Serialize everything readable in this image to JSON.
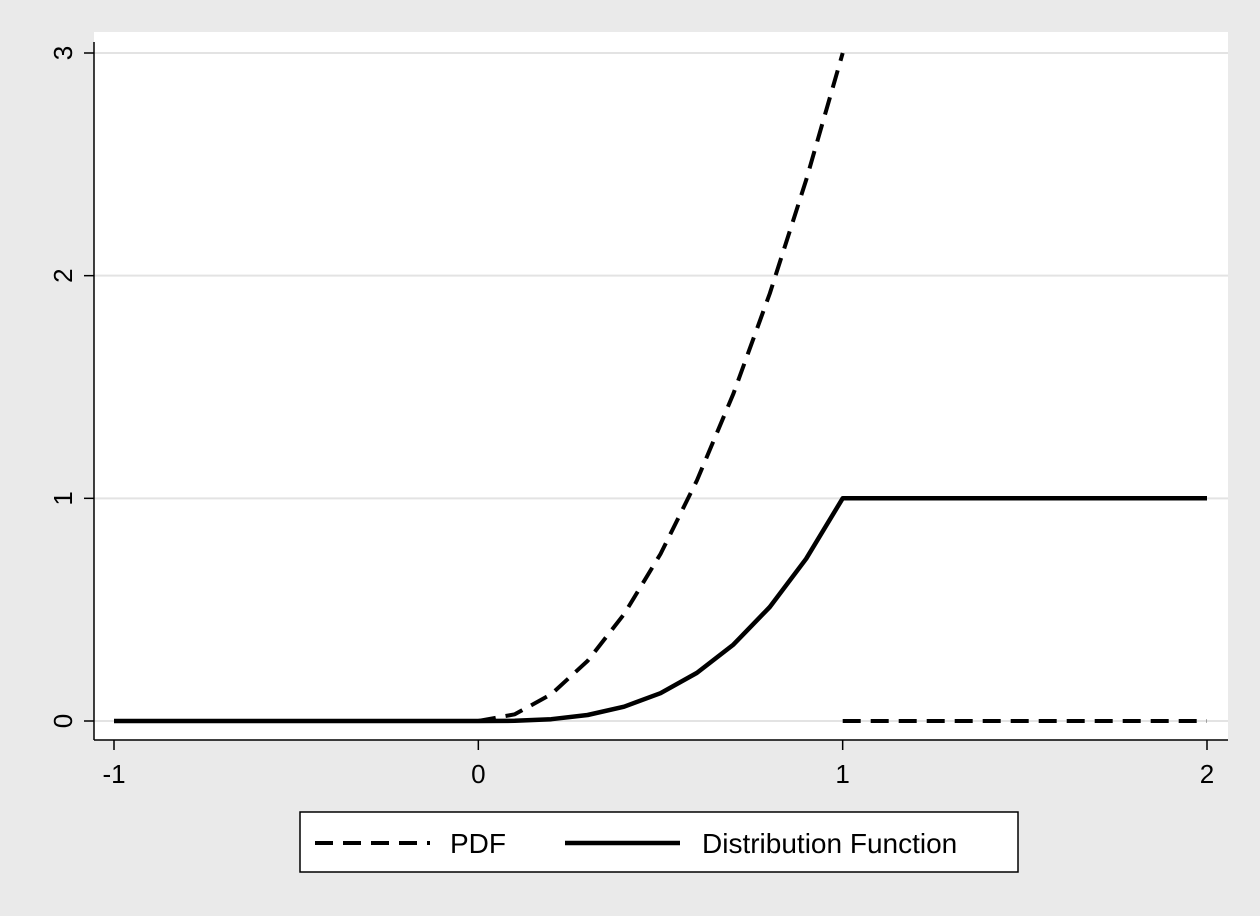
{
  "chart_data": {
    "type": "line",
    "title": "",
    "xlabel": "",
    "ylabel": "",
    "xlim": [
      -1.05,
      2.05
    ],
    "ylim": [
      -0.1,
      3.1
    ],
    "x_ticks": [
      -1,
      0,
      1,
      2
    ],
    "x_tick_labels": [
      "-1",
      "0",
      "1",
      "2"
    ],
    "y_ticks": [
      0,
      1,
      2,
      3
    ],
    "y_tick_labels": [
      "0",
      "1",
      "2",
      "3"
    ],
    "grid": "horizontal",
    "legend_position": "bottom",
    "series": [
      {
        "name": "PDF",
        "style": "dashed",
        "segments": [
          {
            "x": [
              -1,
              -0.5,
              0,
              0.1,
              0.2,
              0.3,
              0.4,
              0.5,
              0.6,
              0.7,
              0.8,
              0.9,
              1.0
            ],
            "y": [
              0,
              0,
              0,
              0.03,
              0.12,
              0.27,
              0.48,
              0.75,
              1.08,
              1.47,
              1.92,
              2.43,
              3.0
            ]
          },
          {
            "x": [
              1,
              2
            ],
            "y": [
              0,
              0
            ]
          }
        ]
      },
      {
        "name": "Distribution Function",
        "style": "solid",
        "segments": [
          {
            "x": [
              -1,
              -0.5,
              0,
              0.1,
              0.2,
              0.3,
              0.4,
              0.5,
              0.6,
              0.7,
              0.8,
              0.9,
              1.0,
              1.5,
              2.0
            ],
            "y": [
              0,
              0,
              0,
              0.001,
              0.008,
              0.027,
              0.064,
              0.125,
              0.216,
              0.343,
              0.512,
              0.729,
              1.0,
              1.0,
              1.0
            ]
          }
        ]
      }
    ]
  },
  "colors": {
    "background": "#eaeaea",
    "plot_area": "#ffffff",
    "grid": "#e3e3e3",
    "line": "#000000"
  }
}
